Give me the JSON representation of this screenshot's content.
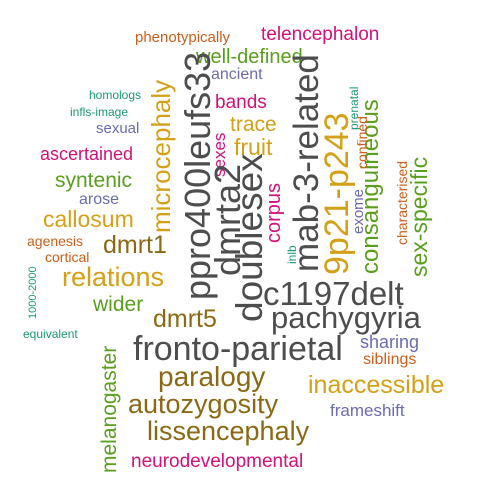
{
  "palette": {
    "gray": "#4d4d4d",
    "gold": "#d4a017",
    "brown": "#8b6914",
    "green": "#5a9e1e",
    "magenta": "#d1127a",
    "purple": "#6b6bb0",
    "orange": "#cc5f1c",
    "teal": "#1a9a73"
  },
  "words": [
    {
      "text": "phenotypically",
      "color": "orange"
    },
    {
      "text": "telencephalon",
      "color": "magenta"
    },
    {
      "text": "well-defined",
      "color": "green"
    },
    {
      "text": "ancient",
      "color": "purple"
    },
    {
      "text": "homologs",
      "color": "teal"
    },
    {
      "text": "infls-image",
      "color": "teal"
    },
    {
      "text": "bands",
      "color": "magenta"
    },
    {
      "text": "trace",
      "color": "gold"
    },
    {
      "text": "sexual",
      "color": "purple"
    },
    {
      "text": "fruit",
      "color": "gold"
    },
    {
      "text": "ascertained",
      "color": "magenta"
    },
    {
      "text": "syntenic",
      "color": "green"
    },
    {
      "text": "arose",
      "color": "purple"
    },
    {
      "text": "callosum",
      "color": "gold"
    },
    {
      "text": "agenesis",
      "color": "orange"
    },
    {
      "text": "cortical",
      "color": "orange"
    },
    {
      "text": "dmrt1",
      "color": "brown"
    },
    {
      "text": "relations",
      "color": "gold"
    },
    {
      "text": "wider",
      "color": "green"
    },
    {
      "text": "equivalent",
      "color": "teal"
    },
    {
      "text": "c1197delt",
      "color": "gray"
    },
    {
      "text": "pachygyria",
      "color": "gray"
    },
    {
      "text": "dmrt5",
      "color": "brown"
    },
    {
      "text": "fronto-parietal",
      "color": "gray"
    },
    {
      "text": "sharing",
      "color": "purple"
    },
    {
      "text": "siblings",
      "color": "orange"
    },
    {
      "text": "paralogy",
      "color": "brown"
    },
    {
      "text": "inaccessible",
      "color": "gold"
    },
    {
      "text": "autozygosity",
      "color": "brown"
    },
    {
      "text": "frameshift",
      "color": "purple"
    },
    {
      "text": "lissencephaly",
      "color": "brown"
    },
    {
      "text": "neurodevelopmental",
      "color": "magenta"
    },
    {
      "text": "microcephaly",
      "color": "gold"
    },
    {
      "text": "ppro400leufs33",
      "color": "gray"
    },
    {
      "text": "sexes",
      "color": "magenta"
    },
    {
      "text": "dmrta2",
      "color": "gray"
    },
    {
      "text": "doublesex",
      "color": "gray"
    },
    {
      "text": "corpus",
      "color": "magenta"
    },
    {
      "text": "mab-3-related",
      "color": "gray"
    },
    {
      "text": "9p21-p243",
      "color": "gold"
    },
    {
      "text": "inlb",
      "color": "teal"
    },
    {
      "text": "consanguineous",
      "color": "green"
    },
    {
      "text": "prenatal",
      "color": "teal"
    },
    {
      "text": "confined",
      "color": "orange"
    },
    {
      "text": "exome",
      "color": "purple"
    },
    {
      "text": "characterised",
      "color": "orange"
    },
    {
      "text": "sex-specific",
      "color": "green"
    },
    {
      "text": "melanogaster",
      "color": "green"
    },
    {
      "text": "1000-2000",
      "color": "teal"
    }
  ]
}
